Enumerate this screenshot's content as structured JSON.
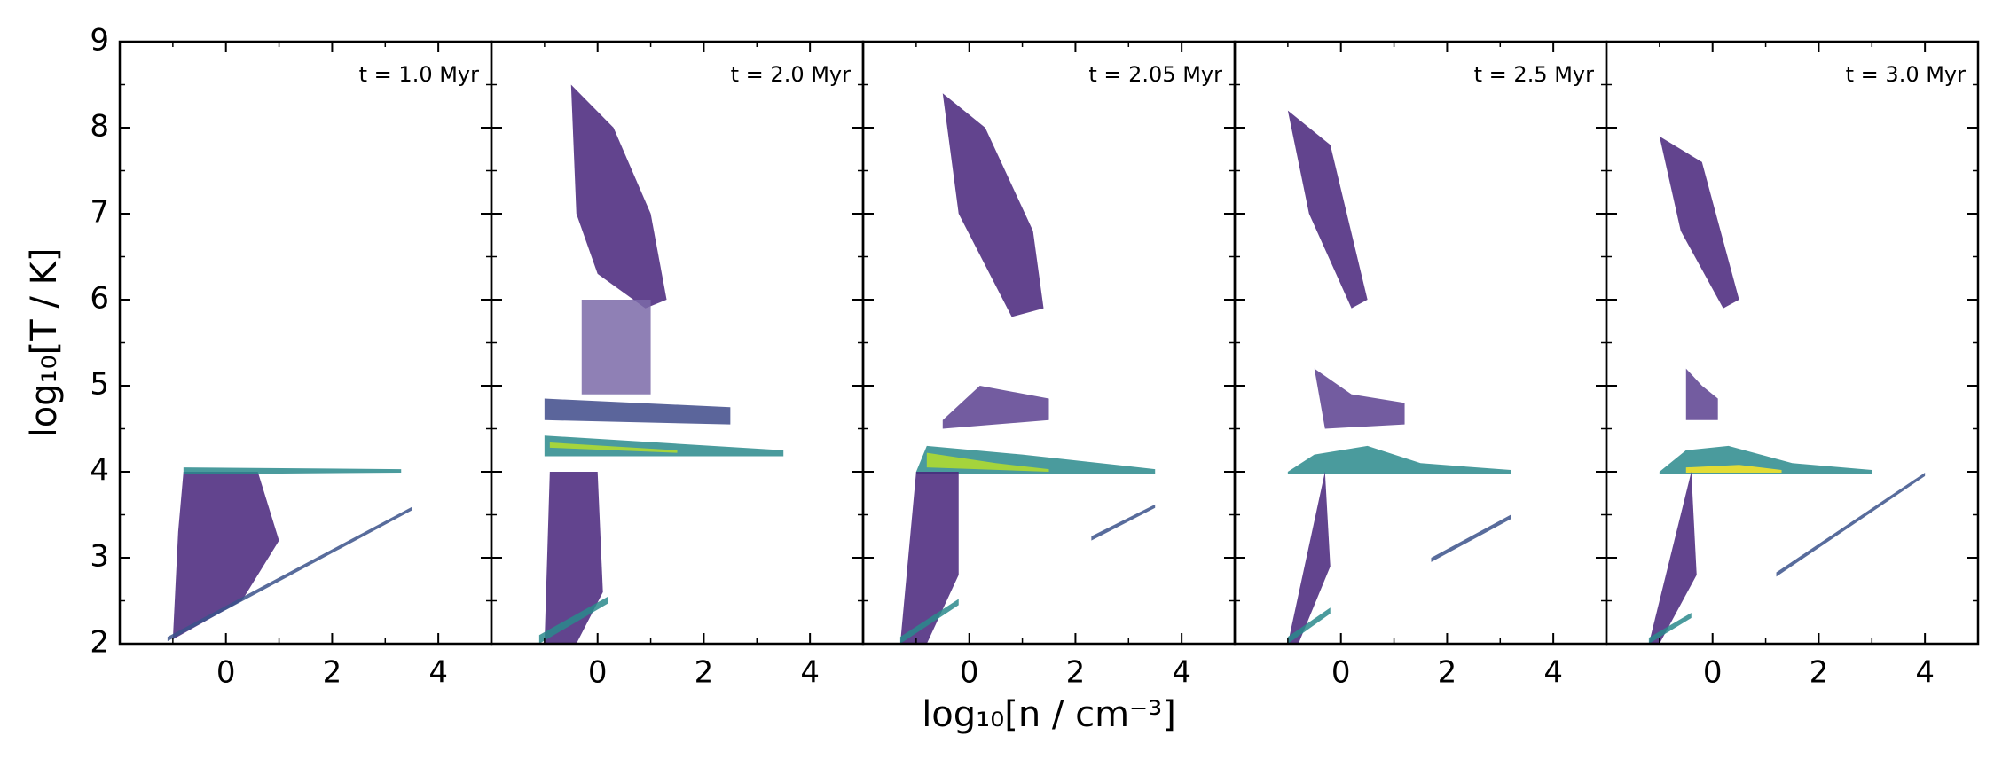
{
  "chart_data": [
    {
      "type": "hist2d",
      "annotation": "t = 1.0 Myr",
      "ylabel": "log₁₀[T / K]",
      "ytick_labels": true,
      "xlim": [
        -2,
        5
      ],
      "ylim": [
        2,
        9
      ],
      "xticks": [
        0,
        2,
        4
      ],
      "yticks": [
        2,
        3,
        4,
        5,
        6,
        7,
        8,
        9
      ],
      "regions": [
        {
          "x": [
            -1.0,
            -0.9,
            -0.8,
            0.6,
            1.0,
            0.3
          ],
          "y": [
            2.05,
            3.3,
            4.0,
            4.0,
            3.2,
            2.5
          ],
          "color": "#46237a"
        },
        {
          "x": [
            -0.8,
            -0.8,
            3.3,
            3.3
          ],
          "y": [
            3.97,
            4.05,
            4.03,
            3.99
          ],
          "color": "#2a8a8c"
        },
        {
          "x": [
            -1.1,
            3.5,
            3.5,
            -1.1
          ],
          "y": [
            2.03,
            3.55,
            3.59,
            2.08
          ],
          "color": "#3b528b"
        }
      ]
    },
    {
      "type": "hist2d",
      "annotation": "t = 2.0 Myr",
      "ytick_labels": false,
      "xlim": [
        -2,
        5
      ],
      "ylim": [
        2,
        9
      ],
      "xticks": [
        0,
        2,
        4
      ],
      "yticks": [
        2,
        3,
        4,
        5,
        6,
        7,
        8,
        9
      ],
      "regions": [
        {
          "x": [
            -0.5,
            0.3,
            1.0,
            1.3,
            0.9,
            0.0,
            -0.4
          ],
          "y": [
            8.5,
            8.0,
            7.0,
            6.0,
            5.9,
            6.3,
            7.0
          ],
          "color": "#46237a"
        },
        {
          "x": [
            -0.3,
            1.0,
            1.0,
            -0.3
          ],
          "y": [
            6.0,
            6.0,
            4.9,
            4.9
          ],
          "color": "#7b6aa8"
        },
        {
          "x": [
            -1.0,
            2.5,
            2.5,
            -1.0
          ],
          "y": [
            4.85,
            4.75,
            4.55,
            4.6
          ],
          "color": "#3e4a89"
        },
        {
          "x": [
            -1.0,
            3.5,
            3.5,
            -1.0
          ],
          "y": [
            4.42,
            4.25,
            4.18,
            4.18
          ],
          "color": "#2a8a8c"
        },
        {
          "x": [
            -0.9,
            1.5,
            1.5,
            -0.9
          ],
          "y": [
            4.34,
            4.25,
            4.22,
            4.28
          ],
          "color": "#b5de2b"
        },
        {
          "x": [
            -1.0,
            -0.9,
            0.0,
            0.1,
            -0.4
          ],
          "y": [
            2.0,
            4.0,
            4.0,
            2.6,
            2.0
          ],
          "color": "#46237a"
        },
        {
          "x": [
            -1.1,
            0.2,
            0.2,
            -1.1
          ],
          "y": [
            2.0,
            2.47,
            2.55,
            2.1
          ],
          "color": "#2a8a8c"
        }
      ]
    },
    {
      "type": "hist2d",
      "annotation": "t = 2.05 Myr",
      "xlabel": "log₁₀[n / cm⁻³]",
      "ytick_labels": false,
      "xlim": [
        -2,
        5
      ],
      "ylim": [
        2,
        9
      ],
      "xticks": [
        0,
        2,
        4
      ],
      "yticks": [
        2,
        3,
        4,
        5,
        6,
        7,
        8,
        9
      ],
      "regions": [
        {
          "x": [
            -0.5,
            0.3,
            1.2,
            1.4,
            0.8,
            -0.2
          ],
          "y": [
            8.4,
            8.0,
            6.8,
            5.9,
            5.8,
            7.0
          ],
          "color": "#46237a"
        },
        {
          "x": [
            -0.5,
            0.2,
            1.5,
            1.5,
            -0.5
          ],
          "y": [
            4.6,
            5.0,
            4.85,
            4.6,
            4.5
          ],
          "color": "#5b3f8f"
        },
        {
          "x": [
            -1.0,
            -0.8,
            1.0,
            3.5,
            3.5,
            -1.0
          ],
          "y": [
            4.0,
            4.3,
            4.2,
            4.03,
            3.98,
            3.98
          ],
          "color": "#2a8a8c"
        },
        {
          "x": [
            -0.8,
            0.5,
            1.5,
            1.5,
            -0.8
          ],
          "y": [
            4.22,
            4.1,
            4.03,
            4.0,
            4.05
          ],
          "color": "#b5de2b"
        },
        {
          "x": [
            -1.3,
            -1.0,
            -0.2,
            -0.2,
            -0.8
          ],
          "y": [
            2.0,
            4.0,
            4.0,
            2.8,
            2.0
          ],
          "color": "#46237a"
        },
        {
          "x": [
            -1.3,
            -0.2,
            -0.2,
            -1.3
          ],
          "y": [
            2.0,
            2.45,
            2.52,
            2.08
          ],
          "color": "#2a8a8c"
        },
        {
          "x": [
            2.3,
            3.5,
            3.5,
            2.3
          ],
          "y": [
            3.2,
            3.58,
            3.62,
            3.25
          ],
          "color": "#3b528b"
        }
      ]
    },
    {
      "type": "hist2d",
      "annotation": "t = 2.5 Myr",
      "ytick_labels": false,
      "xlim": [
        -2,
        5
      ],
      "ylim": [
        2,
        9
      ],
      "xticks": [
        0,
        2,
        4
      ],
      "yticks": [
        2,
        3,
        4,
        5,
        6,
        7,
        8,
        9
      ],
      "regions": [
        {
          "x": [
            -1.0,
            -0.2,
            0.5,
            0.2,
            -0.6
          ],
          "y": [
            8.2,
            7.8,
            6.0,
            5.9,
            7.0
          ],
          "color": "#46237a"
        },
        {
          "x": [
            -0.5,
            0.2,
            1.2,
            1.2,
            -0.3
          ],
          "y": [
            5.2,
            4.9,
            4.8,
            4.55,
            4.5
          ],
          "color": "#5b3f8f"
        },
        {
          "x": [
            -1.0,
            -0.5,
            0.5,
            1.5,
            3.2,
            3.2,
            -1.0
          ],
          "y": [
            4.0,
            4.2,
            4.3,
            4.1,
            4.02,
            3.98,
            3.98
          ],
          "color": "#2a8a8c"
        },
        {
          "x": [
            -1.0,
            -0.3,
            -0.2,
            -0.8
          ],
          "y": [
            2.0,
            4.0,
            2.9,
            2.0
          ],
          "color": "#46237a"
        },
        {
          "x": [
            -1.0,
            -0.2,
            -0.2,
            -1.0
          ],
          "y": [
            2.0,
            2.35,
            2.42,
            2.08
          ],
          "color": "#2a8a8c"
        },
        {
          "x": [
            1.7,
            3.2,
            3.2,
            1.7
          ],
          "y": [
            2.95,
            3.45,
            3.5,
            3.0
          ],
          "color": "#3b528b"
        }
      ]
    },
    {
      "type": "hist2d",
      "annotation": "t = 3.0 Myr",
      "ytick_labels": false,
      "xlim": [
        -2,
        5
      ],
      "ylim": [
        2,
        9
      ],
      "xticks": [
        0,
        2,
        4
      ],
      "yticks": [
        2,
        3,
        4,
        5,
        6,
        7,
        8,
        9
      ],
      "regions": [
        {
          "x": [
            -1.0,
            -0.2,
            0.5,
            0.2,
            -0.6
          ],
          "y": [
            7.9,
            7.6,
            6.0,
            5.9,
            6.8
          ],
          "color": "#46237a"
        },
        {
          "x": [
            -0.5,
            -0.2,
            0.1,
            0.1,
            -0.5
          ],
          "y": [
            5.2,
            5.0,
            4.85,
            4.6,
            4.6
          ],
          "color": "#5b3f8f"
        },
        {
          "x": [
            -1.0,
            -0.5,
            0.3,
            1.5,
            3.0,
            3.0,
            -1.0
          ],
          "y": [
            4.0,
            4.25,
            4.3,
            4.1,
            4.02,
            3.98,
            3.98
          ],
          "color": "#2a8a8c"
        },
        {
          "x": [
            -0.5,
            0.5,
            1.3,
            1.3,
            -0.5
          ],
          "y": [
            4.05,
            4.08,
            4.02,
            3.99,
            3.99
          ],
          "color": "#fde725"
        },
        {
          "x": [
            -1.2,
            -0.4,
            -0.3,
            -1.0
          ],
          "y": [
            2.0,
            4.0,
            2.8,
            2.0
          ],
          "color": "#46237a"
        },
        {
          "x": [
            -1.2,
            -0.4,
            -0.4,
            -1.2
          ],
          "y": [
            2.0,
            2.3,
            2.36,
            2.07
          ],
          "color": "#2a8a8c"
        },
        {
          "x": [
            1.2,
            4.0,
            4.0,
            1.2
          ],
          "y": [
            2.78,
            3.95,
            3.99,
            2.83
          ],
          "color": "#3b528b"
        }
      ]
    }
  ]
}
